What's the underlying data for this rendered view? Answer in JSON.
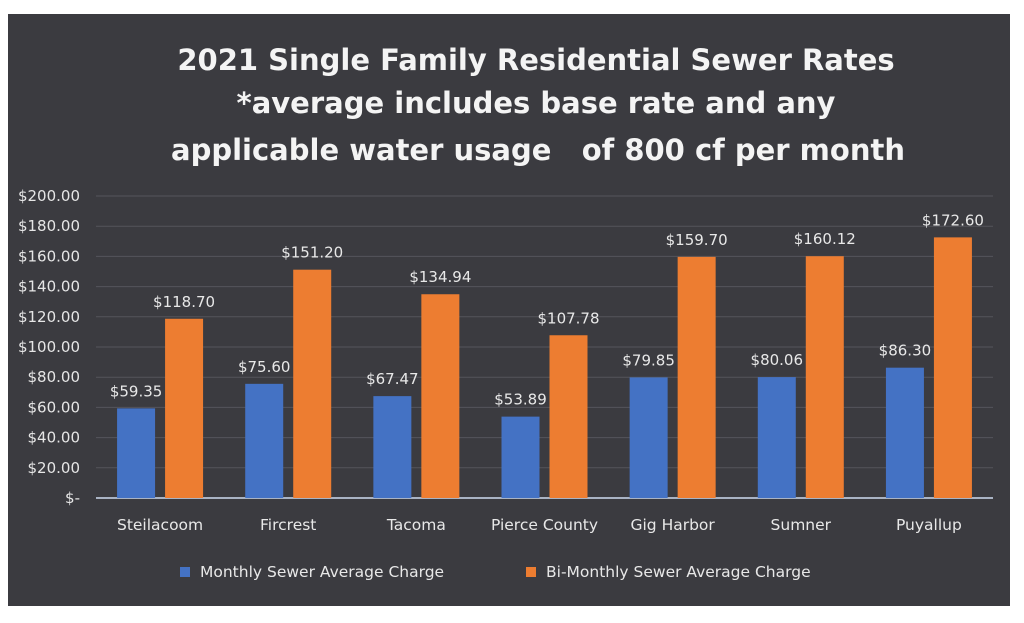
{
  "chart_data": {
    "type": "bar",
    "title": [
      "2021 Single Family Residential Sewer Rates",
      "*average includes base rate and any",
      "applicable water usage   of 800 cf per month"
    ],
    "categories": [
      "Steilacoom",
      "Fircrest",
      "Tacoma",
      "Pierce County",
      "Gig Harbor",
      "Sumner",
      "Puyallup"
    ],
    "series": [
      {
        "name": "Monthly Sewer Average Charge",
        "color": "#4472c4",
        "values": [
          59.35,
          75.6,
          67.47,
          53.89,
          79.85,
          80.06,
          86.3
        ],
        "labels": [
          "$59.35",
          "$75.60",
          "$67.47",
          "$53.89",
          "$79.85",
          "$80.06",
          "$86.30"
        ]
      },
      {
        "name": "Bi-Monthly Sewer Average Charge",
        "color": "#ed7d31",
        "values": [
          118.7,
          151.2,
          134.94,
          107.78,
          159.7,
          160.12,
          172.6
        ],
        "labels": [
          "$118.70",
          "$151.20",
          "$134.94",
          "$107.78",
          "$159.70",
          "$160.12",
          "$172.60"
        ]
      }
    ],
    "ylim": [
      0,
      200
    ],
    "yticks": [
      "$-",
      "$20.00",
      "$40.00",
      "$60.00",
      "$80.00",
      "$100.00",
      "$120.00",
      "$140.00",
      "$160.00",
      "$180.00",
      "$200.00"
    ],
    "xlabel": "",
    "ylabel": "",
    "grid": true,
    "legend": "bottom",
    "background": "#3b3b40"
  }
}
